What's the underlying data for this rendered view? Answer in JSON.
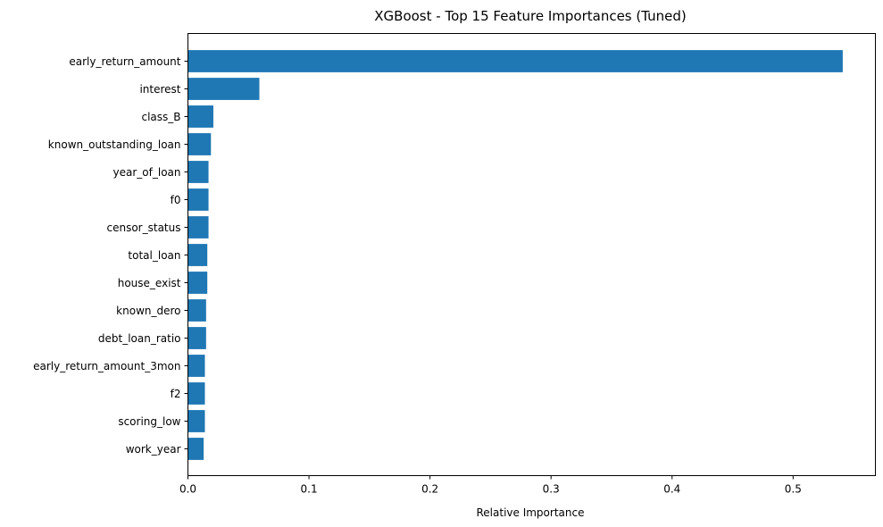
{
  "chart_data": {
    "type": "bar",
    "orientation": "horizontal",
    "title": "XGBoost - Top 15 Feature Importances (Tuned)",
    "xlabel": "Relative Importance",
    "ylabel": "",
    "xlim": [
      0,
      0.568
    ],
    "xticks": [
      0.0,
      0.1,
      0.2,
      0.3,
      0.4,
      0.5
    ],
    "xtick_labels": [
      "0.0",
      "0.1",
      "0.2",
      "0.3",
      "0.4",
      "0.5"
    ],
    "grid": false,
    "bar_color": "#1f77b4",
    "categories": [
      "early_return_amount",
      "interest",
      "class_B",
      "known_outstanding_loan",
      "year_of_loan",
      "f0",
      "censor_status",
      "total_loan",
      "house_exist",
      "known_dero",
      "debt_loan_ratio",
      "early_return_amount_3mon",
      "f2",
      "scoring_low",
      "work_year"
    ],
    "values": [
      0.541,
      0.059,
      0.021,
      0.019,
      0.017,
      0.017,
      0.017,
      0.016,
      0.016,
      0.015,
      0.015,
      0.014,
      0.014,
      0.014,
      0.013
    ]
  }
}
